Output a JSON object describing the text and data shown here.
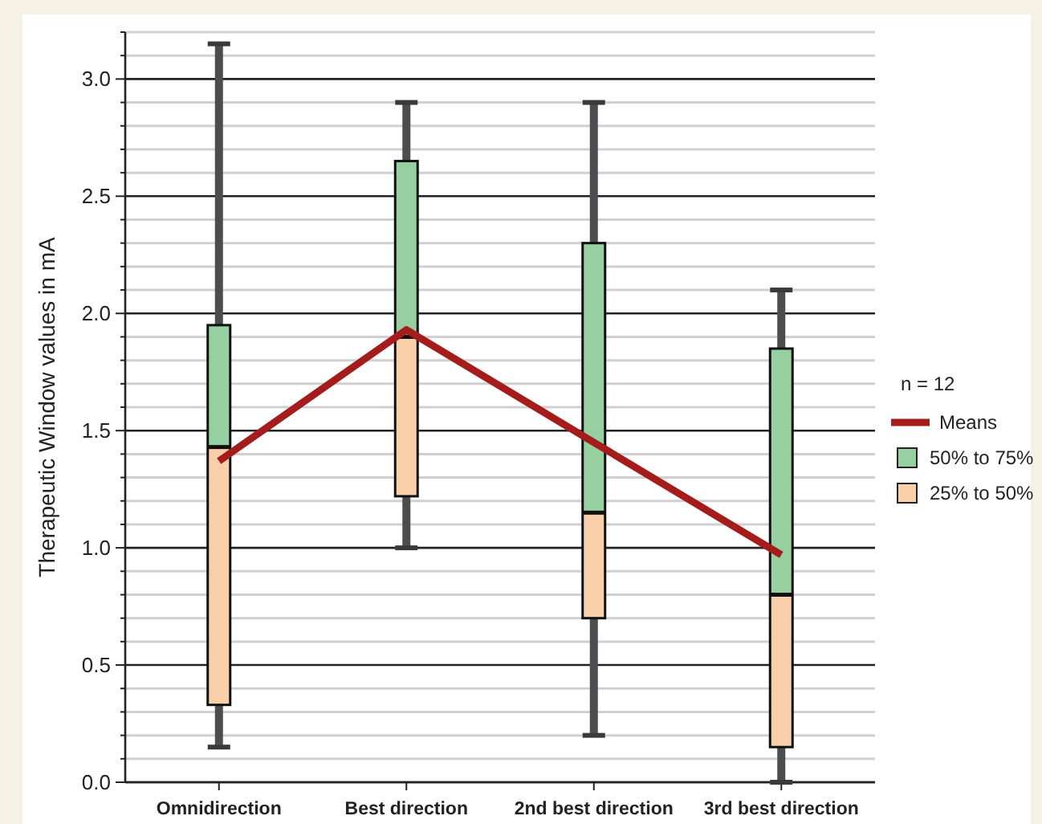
{
  "chart_data": {
    "type": "box",
    "ylabel": "Therapeutic Window values in mA",
    "legend_title": "n = 12",
    "categories": [
      "Omnidirection",
      "Best direction",
      "2nd best direction",
      "3rd best direction"
    ],
    "boxes": [
      {
        "low": 0.15,
        "q1": 0.33,
        "median": 1.43,
        "q3": 1.95,
        "high": 3.15
      },
      {
        "low": 1.0,
        "q1": 1.22,
        "median": 1.9,
        "q3": 2.65,
        "high": 2.9
      },
      {
        "low": 0.2,
        "q1": 0.7,
        "median": 1.15,
        "q3": 2.3,
        "high": 2.9
      },
      {
        "low": 0.0,
        "q1": 0.15,
        "median": 0.8,
        "q3": 1.85,
        "high": 2.1
      }
    ],
    "series": [
      {
        "type": "line",
        "name": "Means",
        "color": "#a51c1c",
        "values": [
          1.37,
          1.93,
          1.45,
          0.97
        ]
      },
      {
        "type": "bar",
        "name": "50% to 75%",
        "color": "#96d0a0",
        "base": [
          1.43,
          1.9,
          1.15,
          0.8
        ],
        "values": [
          0.52,
          0.75,
          1.15,
          1.05
        ]
      },
      {
        "type": "bar",
        "name": "25% to 50%",
        "color": "#f9cfaa",
        "base": [
          0.33,
          1.22,
          0.7,
          0.15
        ],
        "values": [
          1.1,
          0.68,
          0.45,
          0.65
        ]
      }
    ],
    "ylim": [
      0,
      3.2
    ],
    "yticks": [
      {
        "value": 0,
        "label": "0.0"
      },
      {
        "value": 0.1,
        "label": null
      },
      {
        "value": 0.2,
        "label": null
      },
      {
        "value": 0.3,
        "label": null
      },
      {
        "value": 0.4,
        "label": null
      },
      0.5,
      {
        "value": 0.6,
        "label": null
      },
      {
        "value": 0.7,
        "label": null
      },
      {
        "value": 0.8,
        "label": null
      },
      {
        "value": 0.9,
        "label": null
      },
      {
        "value": 1,
        "label": "1.0"
      },
      {
        "value": 1.1,
        "label": null
      },
      {
        "value": 1.2,
        "label": null
      },
      {
        "value": 1.3,
        "label": null
      },
      {
        "value": 1.4,
        "label": null
      },
      1.5,
      {
        "value": 1.6,
        "label": null
      },
      {
        "value": 1.7,
        "label": null
      },
      {
        "value": 1.8,
        "label": null
      },
      {
        "value": 1.9,
        "label": null
      },
      {
        "value": 2,
        "label": "2.0"
      },
      {
        "value": 2.1,
        "label": null
      },
      {
        "value": 2.2,
        "label": null
      },
      {
        "value": 2.3,
        "label": null
      },
      {
        "value": 2.4,
        "label": null
      },
      2.5,
      {
        "value": 2.6,
        "label": null
      },
      {
        "value": 2.7,
        "label": null
      },
      {
        "value": 2.8,
        "label": null
      },
      {
        "value": 2.9,
        "label": null
      },
      {
        "value": 3,
        "label": "3.0"
      },
      {
        "value": 3.1,
        "label": null
      },
      {
        "value": 3.2,
        "label": null
      }
    ],
    "grid": "y",
    "legend": "right",
    "line_style": "solid"
  }
}
